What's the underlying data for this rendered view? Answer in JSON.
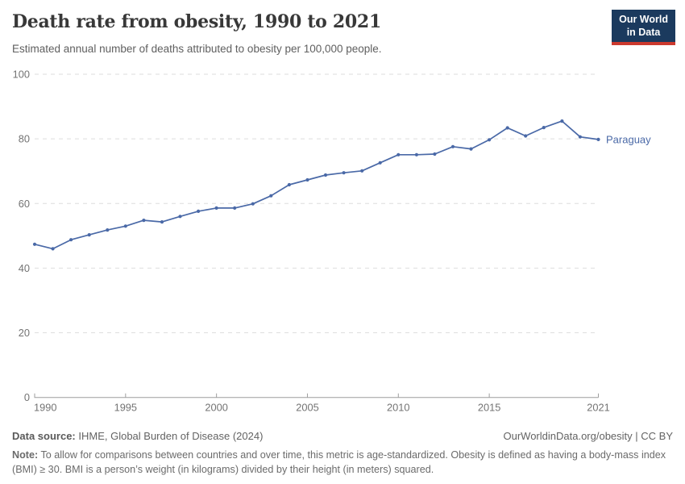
{
  "header": {
    "title": "Death rate from obesity, 1990 to 2021",
    "subtitle": "Estimated annual number of deaths attributed to obesity per 100,000 people.",
    "logo": {
      "line1": "Our World",
      "line2": "in Data"
    }
  },
  "chart_data": {
    "type": "line",
    "title": "Death rate from obesity, 1990 to 2021",
    "xlabel": "",
    "ylabel": "Deaths attributed to obesity per 100,000 people",
    "x": [
      1990,
      1991,
      1992,
      1993,
      1994,
      1995,
      1996,
      1997,
      1998,
      1999,
      2000,
      2001,
      2002,
      2003,
      2004,
      2005,
      2006,
      2007,
      2008,
      2009,
      2010,
      2011,
      2012,
      2013,
      2014,
      2015,
      2016,
      2017,
      2018,
      2019,
      2020,
      2021
    ],
    "series": [
      {
        "name": "Paraguay",
        "color": "#4a69a7",
        "values": [
          47.4,
          46.0,
          48.8,
          50.3,
          51.8,
          53.0,
          54.8,
          54.3,
          56.0,
          57.6,
          58.6,
          58.6,
          59.9,
          62.4,
          65.8,
          67.3,
          68.8,
          69.5,
          70.1,
          72.6,
          75.1,
          75.1,
          75.3,
          77.6,
          76.9,
          79.7,
          83.4,
          80.9,
          83.5,
          85.5,
          80.6,
          79.8
        ]
      }
    ],
    "ylim": [
      0,
      100
    ],
    "yticks": [
      0,
      20,
      40,
      60,
      80,
      100
    ],
    "xticks": [
      1990,
      1995,
      2000,
      2005,
      2010,
      2015,
      2021
    ],
    "grid": "horizontal-dashed",
    "legend_position": "end-of-line-label",
    "markers": true
  },
  "colors": {
    "line": "#4a69a7",
    "grid": "#dedede",
    "axis": "#9e9e9e",
    "tick_label": "#737373"
  },
  "footer": {
    "datasource_label": "Data source:",
    "datasource_text": " IHME, Global Burden of Disease (2024)",
    "license": "OurWorldinData.org/obesity | CC BY",
    "note_label": "Note:",
    "note_text": " To allow for comparisons between countries and over time, this metric is age-standardized. Obesity is defined as having a body-mass index (BMI) ≥ 30. BMI is a person’s weight (in kilograms) divided by their height (in meters) squared."
  }
}
